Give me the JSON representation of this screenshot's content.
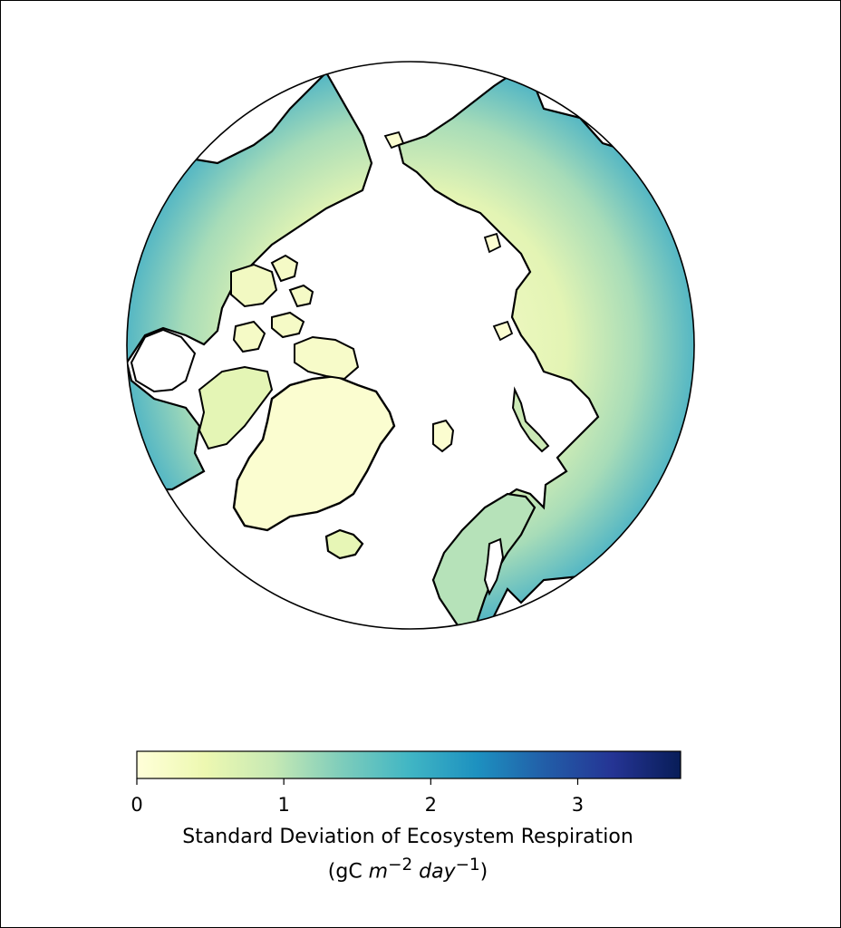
{
  "map": {
    "projection": "north-polar-stereographic",
    "region": "Northern Hemisphere high latitudes (Arctic)",
    "features": [
      "coastlines",
      "North America",
      "Greenland",
      "Canadian Arctic Archipelago",
      "Iceland",
      "Scandinavia",
      "Siberia",
      "Alaska"
    ],
    "ocean_color": "#ffffff",
    "coastline_color": "#000000"
  },
  "colorbar": {
    "colormap": "YlGnBu",
    "min": 0,
    "max": 3.7,
    "ticks": [
      "0",
      "1",
      "2",
      "3"
    ],
    "tick_values": [
      0,
      1,
      2,
      3
    ],
    "label_line1": "Standard Deviation of Ecosystem Respiration",
    "label_line2_prefix": "(gC ",
    "label_line2_unit_m": "m",
    "label_line2_exp_m": "−2",
    "label_line2_unit_day": "day",
    "label_line2_exp_day": "−1",
    "label_line2_suffix": ")",
    "colors": [
      "#ffffd9",
      "#edf8b1",
      "#c7e9b4",
      "#7fcdbb",
      "#41b6c4",
      "#1d91c0",
      "#225ea8",
      "#253494",
      "#081d58"
    ]
  }
}
